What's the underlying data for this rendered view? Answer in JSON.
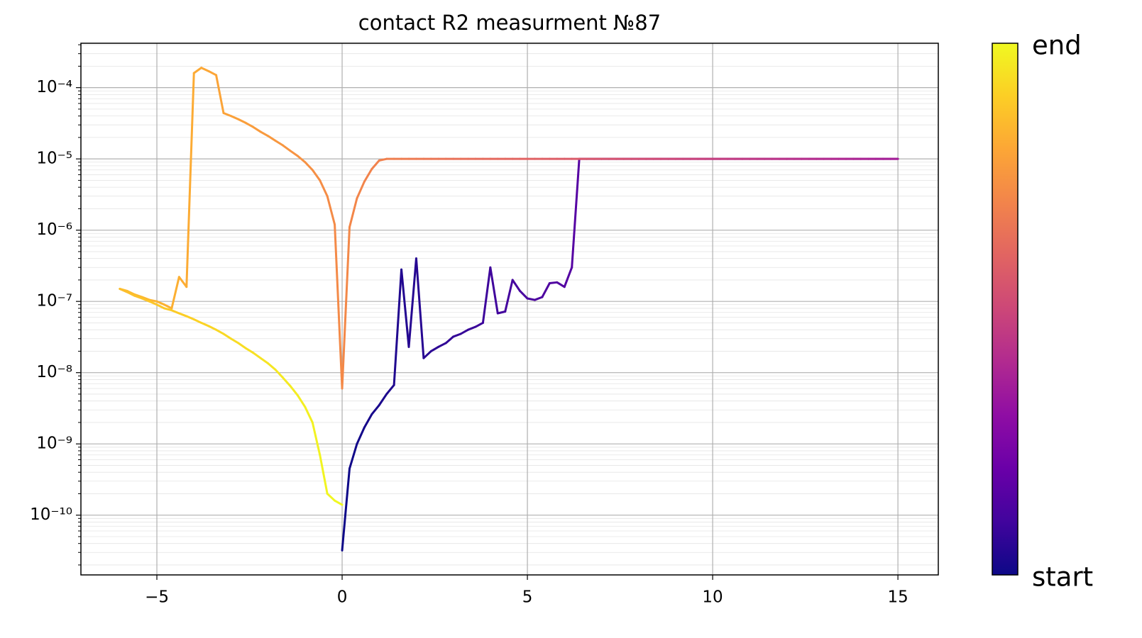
{
  "chart_data": {
    "type": "line",
    "title": "contact R2 measurment №87",
    "x": [
      0,
      0.2,
      0.4,
      0.6,
      0.8,
      1.0,
      1.2,
      1.4,
      1.6,
      1.8,
      2.0,
      2.2,
      2.4,
      2.6,
      2.8,
      3.0,
      3.2,
      3.4,
      3.6,
      3.8,
      4.0,
      4.2,
      4.4,
      4.6,
      4.8,
      5.0,
      5.2,
      5.4,
      5.6,
      5.8,
      6.0,
      6.2,
      6.4,
      6.6,
      6.8,
      7.0,
      7.2,
      7.4,
      7.6,
      7.8,
      8.0,
      8.2,
      8.4,
      8.6,
      8.8,
      9.0,
      9.2,
      9.4,
      9.6,
      9.8,
      10.0,
      10.2,
      10.4,
      10.6,
      10.8,
      11.0,
      11.2,
      11.4,
      11.6,
      11.8,
      12.0,
      12.2,
      12.4,
      12.6,
      12.8,
      13.0,
      13.2,
      13.4,
      13.6,
      13.8,
      14.0,
      14.2,
      14.4,
      14.6,
      14.8,
      15.0,
      14.8,
      14.6,
      14.4,
      14.2,
      14.0,
      13.8,
      13.6,
      13.4,
      13.2,
      13.0,
      12.8,
      12.6,
      12.4,
      12.2,
      12.0,
      11.8,
      11.6,
      11.4,
      11.2,
      11.0,
      10.8,
      10.6,
      10.4,
      10.2,
      10.0,
      9.8,
      9.6,
      9.4,
      9.2,
      9.0,
      8.8,
      8.6,
      8.4,
      8.2,
      8.0,
      7.8,
      7.6,
      7.4,
      7.2,
      7.0,
      6.8,
      6.6,
      6.4,
      6.2,
      6.0,
      5.8,
      5.6,
      5.4,
      5.2,
      5.0,
      4.8,
      4.6,
      4.4,
      4.2,
      4.0,
      3.8,
      3.6,
      3.4,
      3.2,
      3.0,
      2.8,
      2.6,
      2.4,
      2.2,
      2.0,
      1.8,
      1.6,
      1.4,
      1.2,
      1.0,
      0.8,
      0.6,
      0.4,
      0.2,
      0,
      -0.2,
      -0.4,
      -0.6,
      -0.8,
      -1.0,
      -1.2,
      -1.4,
      -1.6,
      -1.8,
      -2.0,
      -2.2,
      -2.4,
      -2.6,
      -2.8,
      -3.0,
      -3.2,
      -3.4,
      -3.6,
      -3.8,
      -4.0,
      -4.2,
      -4.4,
      -4.6,
      -4.8,
      -5.0,
      -5.2,
      -5.4,
      -5.6,
      -5.8,
      -6.0,
      -5.8,
      -5.6,
      -5.4,
      -5.2,
      -5.0,
      -4.8,
      -4.6,
      -4.4,
      -4.2,
      -4.0,
      -3.8,
      -3.6,
      -3.4,
      -3.2,
      -3.0,
      -2.8,
      -2.6,
      -2.4,
      -2.2,
      -2.0,
      -1.8,
      -1.6,
      -1.4,
      -1.2,
      -1.0,
      -0.8,
      -0.6,
      -0.4,
      -0.2,
      0
    ],
    "y": [
      3.2e-11,
      4.5e-10,
      1e-09,
      1.7e-09,
      2.6e-09,
      3.5e-09,
      5e-09,
      6.7e-09,
      2.8e-07,
      2.3e-08,
      4e-07,
      1.6e-08,
      2e-08,
      2.3e-08,
      2.6e-08,
      3.2e-08,
      3.5e-08,
      4e-08,
      4.4e-08,
      5e-08,
      3e-07,
      6.8e-08,
      7.2e-08,
      2e-07,
      1.4e-07,
      1.1e-07,
      1.05e-07,
      1.15e-07,
      1.8e-07,
      1.85e-07,
      1.6e-07,
      3e-07,
      1e-05,
      1e-05,
      1e-05,
      1e-05,
      1e-05,
      1e-05,
      1e-05,
      1e-05,
      1e-05,
      1e-05,
      1e-05,
      1e-05,
      1e-05,
      1e-05,
      1e-05,
      1e-05,
      1e-05,
      1e-05,
      1e-05,
      1e-05,
      1e-05,
      1e-05,
      1e-05,
      1e-05,
      1e-05,
      1e-05,
      1e-05,
      1e-05,
      1e-05,
      1e-05,
      1e-05,
      1e-05,
      1e-05,
      1e-05,
      1e-05,
      1e-05,
      1e-05,
      1e-05,
      1e-05,
      1e-05,
      1e-05,
      1e-05,
      1e-05,
      1e-05,
      1e-05,
      1e-05,
      1e-05,
      1e-05,
      1e-05,
      1e-05,
      1e-05,
      1e-05,
      1e-05,
      1e-05,
      1e-05,
      1e-05,
      1e-05,
      1e-05,
      1e-05,
      1e-05,
      1e-05,
      1e-05,
      1e-05,
      1e-05,
      1e-05,
      1e-05,
      1e-05,
      1e-05,
      1e-05,
      1e-05,
      1e-05,
      1e-05,
      1e-05,
      1e-05,
      1e-05,
      1e-05,
      1e-05,
      1e-05,
      1e-05,
      1e-05,
      1e-05,
      1e-05,
      1e-05,
      1e-05,
      1e-05,
      1e-05,
      1e-05,
      1e-05,
      1e-05,
      1e-05,
      1e-05,
      1e-05,
      1e-05,
      1e-05,
      1e-05,
      1e-05,
      1e-05,
      1e-05,
      1e-05,
      1e-05,
      1e-05,
      1e-05,
      1e-05,
      1e-05,
      1e-05,
      1e-05,
      1e-05,
      1e-05,
      1e-05,
      1e-05,
      1e-05,
      1e-05,
      1e-05,
      9.5e-06,
      7.2e-06,
      4.8e-06,
      2.8e-06,
      1.1e-06,
      6e-09,
      1.2e-06,
      3e-06,
      5e-06,
      7e-06,
      9e-06,
      1.1e-05,
      1.3e-05,
      1.55e-05,
      1.8e-05,
      2.1e-05,
      2.4e-05,
      2.8e-05,
      3.2e-05,
      3.6e-05,
      4e-05,
      4.4e-05,
      0.00015,
      0.00017,
      0.00019,
      0.00016,
      1.6e-07,
      2.2e-07,
      8e-08,
      9e-08,
      1e-07,
      1.05e-07,
      1.15e-07,
      1.25e-07,
      1.4e-07,
      1.5e-07,
      1.35e-07,
      1.2e-07,
      1.1e-07,
      1e-07,
      9e-08,
      8e-08,
      7.5e-08,
      6.8e-08,
      6.2e-08,
      5.6e-08,
      5e-08,
      4.5e-08,
      4e-08,
      3.5e-08,
      3e-08,
      2.6e-08,
      2.2e-08,
      1.9e-08,
      1.6e-08,
      1.35e-08,
      1.1e-08,
      8.5e-09,
      6.5e-09,
      4.8e-09,
      3.3e-09,
      2e-09,
      7e-10,
      2e-10,
      1.6e-10,
      1.4e-10
    ],
    "xlim": [
      -7.05,
      16.09
    ],
    "xticks": [
      {
        "value": -5,
        "label": "−5"
      },
      0,
      5,
      10,
      15
    ],
    "ylim": [
      1.45e-11,
      0.00042
    ],
    "yticks": [
      {
        "value": 1e-10,
        "label": "10⁻¹⁰"
      },
      {
        "value": 1e-09,
        "label": "10⁻⁹"
      },
      {
        "value": 1e-08,
        "label": "10⁻⁸"
      },
      {
        "value": 1e-07,
        "label": "10⁻⁷"
      },
      {
        "value": 1e-06,
        "label": "10⁻⁶"
      },
      {
        "value": 1e-05,
        "label": "10⁻⁵"
      },
      {
        "value": 0.0001,
        "label": "10⁻⁴"
      }
    ],
    "log_y": true,
    "grid": true,
    "minor_grid": true,
    "colormap": [
      "#0d0887",
      "#41049d",
      "#6a00a8",
      "#8f0da4",
      "#b12a90",
      "#cc4778",
      "#e16462",
      "#f2844b",
      "#fca636",
      "#fcce25",
      "#f0f921"
    ],
    "colorbar_labels": [
      "start",
      "end"
    ]
  }
}
